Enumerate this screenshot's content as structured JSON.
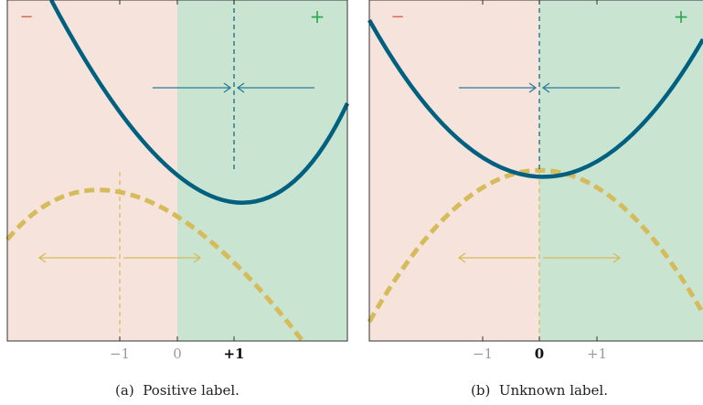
{
  "colors": {
    "negative_region": "#f6e3db",
    "positive_region": "#c9e5d2",
    "solid_curve": "#006080",
    "dashed_curve": "#d6bb5a",
    "negative_sign": "#e06a4f",
    "positive_sign": "#2ea84f",
    "axis": "#333333",
    "muted_tick": "#9a9a9a"
  },
  "panels": [
    {
      "id": "a",
      "caption": "(a)  Positive label.",
      "corner_left": "−",
      "corner_right": "+",
      "ticks": [
        {
          "value": -1,
          "label": "−1",
          "emphasis": false
        },
        {
          "value": 0,
          "label": "0",
          "emphasis": false
        },
        {
          "value": 1,
          "label": "+1",
          "emphasis": true
        }
      ],
      "solid_curve": {
        "type": "parabola",
        "vertex_x": 1,
        "opens": "up"
      },
      "dashed_curve": {
        "type": "parabola",
        "vertex_x": -1,
        "opens": "down"
      }
    },
    {
      "id": "b",
      "caption": "(b)  Unknown label.",
      "corner_left": "−",
      "corner_right": "+",
      "ticks": [
        {
          "value": -1,
          "label": "−1",
          "emphasis": false
        },
        {
          "value": 0,
          "label": "0",
          "emphasis": true
        },
        {
          "value": 1,
          "label": "+1",
          "emphasis": false
        }
      ],
      "solid_curve": {
        "type": "parabola",
        "vertex_x": 0,
        "opens": "up"
      },
      "dashed_curve": {
        "type": "parabola",
        "vertex_x": 0,
        "opens": "down"
      }
    }
  ]
}
